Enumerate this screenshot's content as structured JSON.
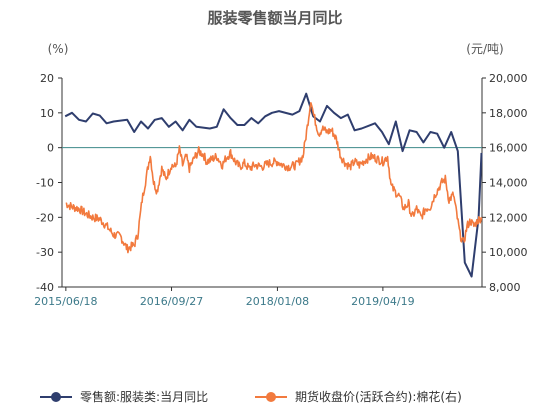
{
  "chart_data": {
    "type": "line",
    "title": "服装零售额当月同比",
    "left_unit": "(%)",
    "right_unit": "(元/吨)",
    "left_axis": {
      "min": -40,
      "max": 20,
      "ticks": [
        "20",
        "10",
        "0",
        "-10",
        "-20",
        "-30",
        "-40"
      ]
    },
    "right_axis": {
      "min": 8000,
      "max": 20000,
      "ticks": [
        "20,000",
        "18,000",
        "16,000",
        "14,000",
        "12,000",
        "10,000",
        "8,000"
      ]
    },
    "x_ticks": [
      "2015/06/18",
      "2016/09/27",
      "2018/01/08",
      "2019/04/19"
    ],
    "x_range": [
      "2015-06-01",
      "2020-06-30"
    ],
    "zero_line": true,
    "legend_position": "bottom",
    "series": [
      {
        "name": "零售额:服装类:当月同比",
        "axis": "left",
        "color": "#2f3e6e",
        "points": [
          [
            "2015-06-15",
            9.0
          ],
          [
            "2015-07-15",
            10.0
          ],
          [
            "2015-08-15",
            8.0
          ],
          [
            "2015-09-15",
            7.5
          ],
          [
            "2015-10-15",
            9.8
          ],
          [
            "2015-11-15",
            9.2
          ],
          [
            "2015-12-15",
            7.0
          ],
          [
            "2016-01-15",
            7.5
          ],
          [
            "2016-03-15",
            8.0
          ],
          [
            "2016-04-15",
            4.5
          ],
          [
            "2016-05-15",
            7.5
          ],
          [
            "2016-06-15",
            5.5
          ],
          [
            "2016-07-15",
            8.0
          ],
          [
            "2016-08-15",
            8.5
          ],
          [
            "2016-09-15",
            6.0
          ],
          [
            "2016-10-15",
            7.5
          ],
          [
            "2016-11-15",
            5.0
          ],
          [
            "2016-12-15",
            8.0
          ],
          [
            "2017-01-15",
            6.0
          ],
          [
            "2017-03-15",
            5.5
          ],
          [
            "2017-04-15",
            6.0
          ],
          [
            "2017-05-15",
            11.0
          ],
          [
            "2017-06-15",
            8.5
          ],
          [
            "2017-07-15",
            6.5
          ],
          [
            "2017-08-15",
            6.5
          ],
          [
            "2017-09-15",
            8.5
          ],
          [
            "2017-10-15",
            7.0
          ],
          [
            "2017-11-15",
            9.0
          ],
          [
            "2017-12-15",
            10.0
          ],
          [
            "2018-01-15",
            10.5
          ],
          [
            "2018-03-15",
            9.5
          ],
          [
            "2018-04-15",
            10.5
          ],
          [
            "2018-05-15",
            15.5
          ],
          [
            "2018-06-15",
            9.0
          ],
          [
            "2018-07-15",
            7.5
          ],
          [
            "2018-08-15",
            12.0
          ],
          [
            "2018-09-15",
            10.0
          ],
          [
            "2018-10-15",
            8.5
          ],
          [
            "2018-11-15",
            9.5
          ],
          [
            "2018-12-15",
            5.0
          ],
          [
            "2019-01-15",
            5.5
          ],
          [
            "2019-03-15",
            7.0
          ],
          [
            "2019-04-15",
            4.5
          ],
          [
            "2019-05-15",
            1.0
          ],
          [
            "2019-06-15",
            7.5
          ],
          [
            "2019-07-15",
            -1.0
          ],
          [
            "2019-08-15",
            5.0
          ],
          [
            "2019-09-15",
            4.5
          ],
          [
            "2019-10-15",
            1.5
          ],
          [
            "2019-11-15",
            4.5
          ],
          [
            "2019-12-15",
            4.0
          ],
          [
            "2020-01-15",
            0.0
          ],
          [
            "2020-02-15",
            4.5
          ],
          [
            "2020-03-15",
            -1.0
          ],
          [
            "2020-04-15",
            -33.0
          ],
          [
            "2020-05-15",
            -37.0
          ],
          [
            "2020-06-15",
            -20.0
          ],
          [
            "2020-06-28",
            -1.5
          ]
        ]
      },
      {
        "name": "期货收盘价(活跃合约):棉花(右)",
        "axis": "right",
        "color": "#f27a3e",
        "points": [
          [
            "2015-06-18",
            12800
          ],
          [
            "2015-07-15",
            12600
          ],
          [
            "2015-08-15",
            12500
          ],
          [
            "2015-09-15",
            12200
          ],
          [
            "2015-10-15",
            12000
          ],
          [
            "2015-11-15",
            11900
          ],
          [
            "2015-12-15",
            11500
          ],
          [
            "2016-01-15",
            11000
          ],
          [
            "2016-02-15",
            10900
          ],
          [
            "2016-03-15",
            10200
          ],
          [
            "2016-04-15",
            10400
          ],
          [
            "2016-05-01",
            11000
          ],
          [
            "2016-05-20",
            13000
          ],
          [
            "2016-06-10",
            14500
          ],
          [
            "2016-06-25",
            15600
          ],
          [
            "2016-07-10",
            14000
          ],
          [
            "2016-07-25",
            13500
          ],
          [
            "2016-08-15",
            14800
          ],
          [
            "2016-09-01",
            14200
          ],
          [
            "2016-09-27",
            15000
          ],
          [
            "2016-10-15",
            14900
          ],
          [
            "2016-11-01",
            15900
          ],
          [
            "2016-11-15",
            15000
          ],
          [
            "2016-12-01",
            15500
          ],
          [
            "2016-12-15",
            14800
          ],
          [
            "2017-01-05",
            15400
          ],
          [
            "2017-01-25",
            15800
          ],
          [
            "2017-02-15",
            15600
          ],
          [
            "2017-03-01",
            15200
          ],
          [
            "2017-03-20",
            15300
          ],
          [
            "2017-04-15",
            15500
          ],
          [
            "2017-05-10",
            15000
          ],
          [
            "2017-05-25",
            15400
          ],
          [
            "2017-06-15",
            15700
          ],
          [
            "2017-07-05",
            15200
          ],
          [
            "2017-07-25",
            14900
          ],
          [
            "2017-08-15",
            15100
          ],
          [
            "2017-09-05",
            14800
          ],
          [
            "2017-10-01",
            15000
          ],
          [
            "2017-11-01",
            14900
          ],
          [
            "2017-12-01",
            15100
          ],
          [
            "2018-01-08",
            15200
          ],
          [
            "2018-02-01",
            15000
          ],
          [
            "2018-03-01",
            14900
          ],
          [
            "2018-04-01",
            15000
          ],
          [
            "2018-05-01",
            15500
          ],
          [
            "2018-05-20",
            17200
          ],
          [
            "2018-06-05",
            18800
          ],
          [
            "2018-06-15",
            18000
          ],
          [
            "2018-06-25",
            17500
          ],
          [
            "2018-07-10",
            16800
          ],
          [
            "2018-07-25",
            17100
          ],
          [
            "2018-08-15",
            16900
          ],
          [
            "2018-09-05",
            17000
          ],
          [
            "2018-09-25",
            16500
          ],
          [
            "2018-10-15",
            15500
          ],
          [
            "2018-11-05",
            15100
          ],
          [
            "2018-11-25",
            14900
          ],
          [
            "2018-12-15",
            15200
          ],
          [
            "2019-01-05",
            15000
          ],
          [
            "2019-02-01",
            15300
          ],
          [
            "2019-03-01",
            15500
          ],
          [
            "2019-04-19",
            15200
          ],
          [
            "2019-05-10",
            15500
          ],
          [
            "2019-05-25",
            13800
          ],
          [
            "2019-06-10",
            13500
          ],
          [
            "2019-07-01",
            13200
          ],
          [
            "2019-07-20",
            12500
          ],
          [
            "2019-08-10",
            12800
          ],
          [
            "2019-08-25",
            12000
          ],
          [
            "2019-09-15",
            12500
          ],
          [
            "2019-10-05",
            12000
          ],
          [
            "2019-10-25",
            12500
          ],
          [
            "2019-11-15",
            12600
          ],
          [
            "2019-12-05",
            13300
          ],
          [
            "2020-01-05",
            14000
          ],
          [
            "2020-01-20",
            14200
          ],
          [
            "2020-02-05",
            13000
          ],
          [
            "2020-02-25",
            13300
          ],
          [
            "2020-03-10",
            12200
          ],
          [
            "2020-03-25",
            11000
          ],
          [
            "2020-04-10",
            10500
          ],
          [
            "2020-04-25",
            11500
          ],
          [
            "2020-05-10",
            11800
          ],
          [
            "2020-05-25",
            11500
          ],
          [
            "2020-06-10",
            11800
          ],
          [
            "2020-06-28",
            12000
          ]
        ]
      }
    ]
  }
}
